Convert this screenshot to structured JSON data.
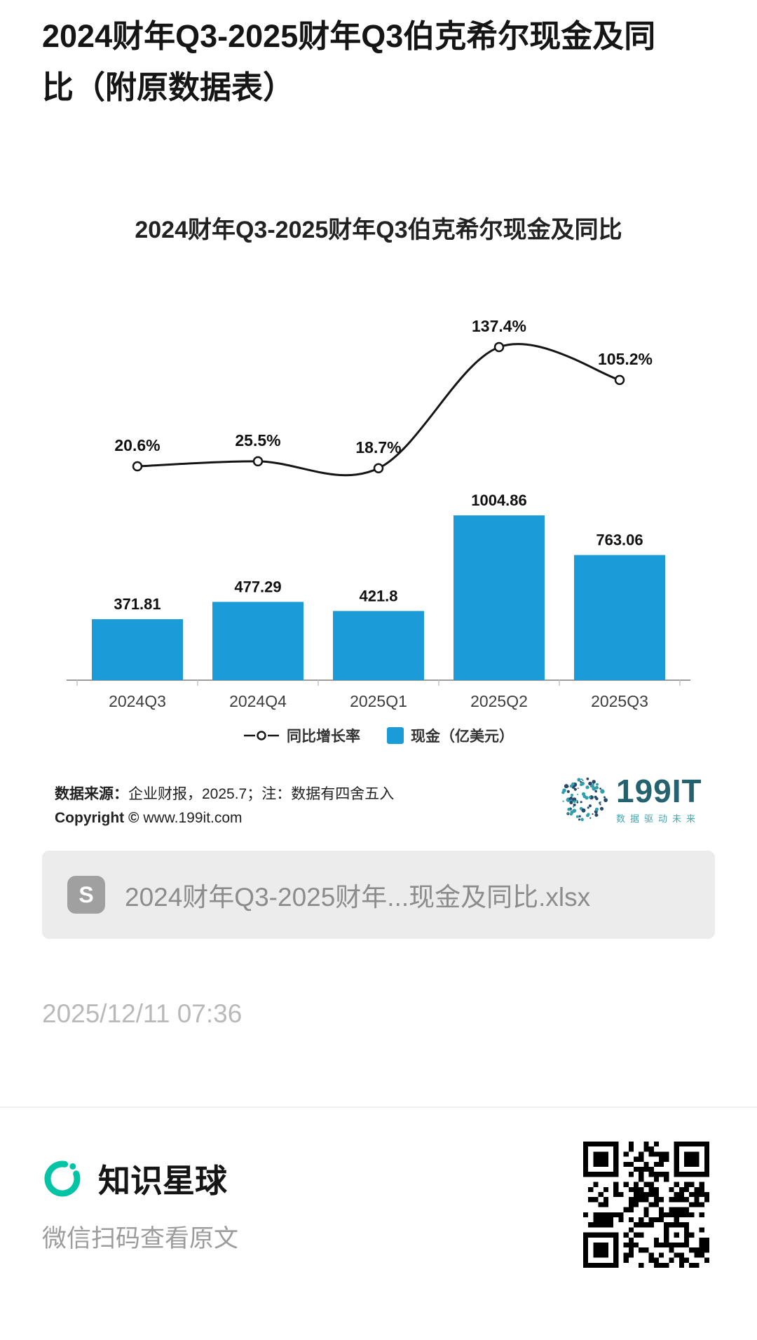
{
  "page": {
    "title": "2024财年Q3-2025财年Q3伯克希尔现金及同比（附原数据表）",
    "timestamp": "2025/12/11 07:36"
  },
  "chart_data": {
    "type": "bar+line",
    "title": "2024财年Q3-2025财年Q3伯克希尔现金及同比",
    "categories": [
      "2024Q3",
      "2024Q4",
      "2025Q1",
      "2025Q2",
      "2025Q3"
    ],
    "series": [
      {
        "name": "现金（亿美元）",
        "type": "bar",
        "color": "#1B9BD8",
        "values": [
          371.81,
          477.29,
          421.8,
          1004.86,
          763.06
        ],
        "labels": [
          "371.81",
          "477.29",
          "421.8",
          "1004.86",
          "763.06"
        ]
      },
      {
        "name": "同比增长率",
        "type": "line",
        "color": "#151515",
        "values": [
          20.6,
          25.5,
          18.7,
          137.4,
          105.2
        ],
        "labels": [
          "20.6%",
          "25.5%",
          "18.7%",
          "137.4%",
          "105.2%"
        ]
      }
    ],
    "legend_position": "bottom",
    "grid": false,
    "bar_axis_range": [
      0,
      1100
    ],
    "line_axis_range_percent": [
      0,
      160
    ]
  },
  "source": {
    "label": "数据来源：",
    "text": "企业财报，2025.7；注：数据有四舍五入",
    "copyright_label": "Copyright ©",
    "copyright_text": "www.199it.com"
  },
  "logo199": {
    "name": "199IT",
    "tagline": "数据驱动未来"
  },
  "attachment": {
    "icon_glyph": "S",
    "filename": "2024财年Q3-2025财年...现金及同比.xlsx"
  },
  "footer": {
    "brand": "知识星球",
    "subtitle": "微信扫码查看原文"
  },
  "colors": {
    "bar": "#1B9BD8",
    "line": "#151515",
    "logo_teal_dark": "#24626F",
    "logo_teal": "#3FA8B2",
    "brand_green": "#05C3A5",
    "attachment_bg": "#ECECEC",
    "muted_text": "#8C8C8C"
  }
}
